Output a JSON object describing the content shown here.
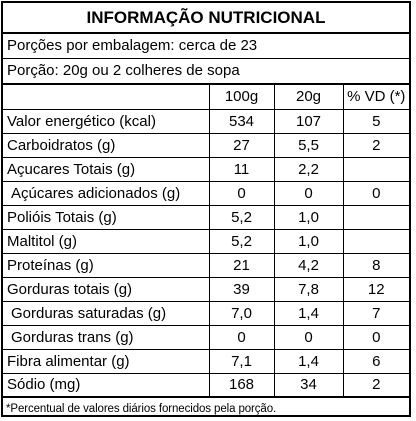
{
  "title": "INFORMAÇÃO NUTRICIONAL",
  "servings": "Porções por embalagem: cerca de 23",
  "portion": "Porção: 20g ou 2 colheres de sopa",
  "columns": [
    "",
    "100g",
    "20g",
    "% VD (*)"
  ],
  "rows": [
    {
      "name": "Valor energético (kcal)",
      "v100": "534",
      "v20": "107",
      "vd": "5"
    },
    {
      "name": "Carboidratos (g)",
      "v100": "27",
      "v20": "5,5",
      "vd": "2"
    },
    {
      "name": "Açucares Totais (g)",
      "v100": "11",
      "v20": "2,2",
      "vd": ""
    },
    {
      "name": "Açúcares adicionados (g)",
      "v100": "0",
      "v20": "0",
      "vd": "0"
    },
    {
      "name": "Polióis Totais (g)",
      "v100": "5,2",
      "v20": "1,0",
      "vd": ""
    },
    {
      "name": "Maltitol (g)",
      "v100": "5,2",
      "v20": "1,0",
      "vd": ""
    },
    {
      "name": "Proteínas (g)",
      "v100": "21",
      "v20": "4,2",
      "vd": "8"
    },
    {
      "name": "Gorduras totais (g)",
      "v100": "39",
      "v20": "7,8",
      "vd": "12"
    },
    {
      "name": "Gorduras saturadas (g)",
      "v100": "7,0",
      "v20": "1,4",
      "vd": "7"
    },
    {
      "name": "Gorduras trans (g)",
      "v100": "0",
      "v20": "0",
      "vd": "0"
    },
    {
      "name": "Fibra alimentar (g)",
      "v100": "7,1",
      "v20": "1,4",
      "vd": "6"
    },
    {
      "name": "Sódio (mg)",
      "v100": "168",
      "v20": "34",
      "vd": "2"
    }
  ],
  "footnote": "*Percentual de valores diários fornecidos pela porção."
}
